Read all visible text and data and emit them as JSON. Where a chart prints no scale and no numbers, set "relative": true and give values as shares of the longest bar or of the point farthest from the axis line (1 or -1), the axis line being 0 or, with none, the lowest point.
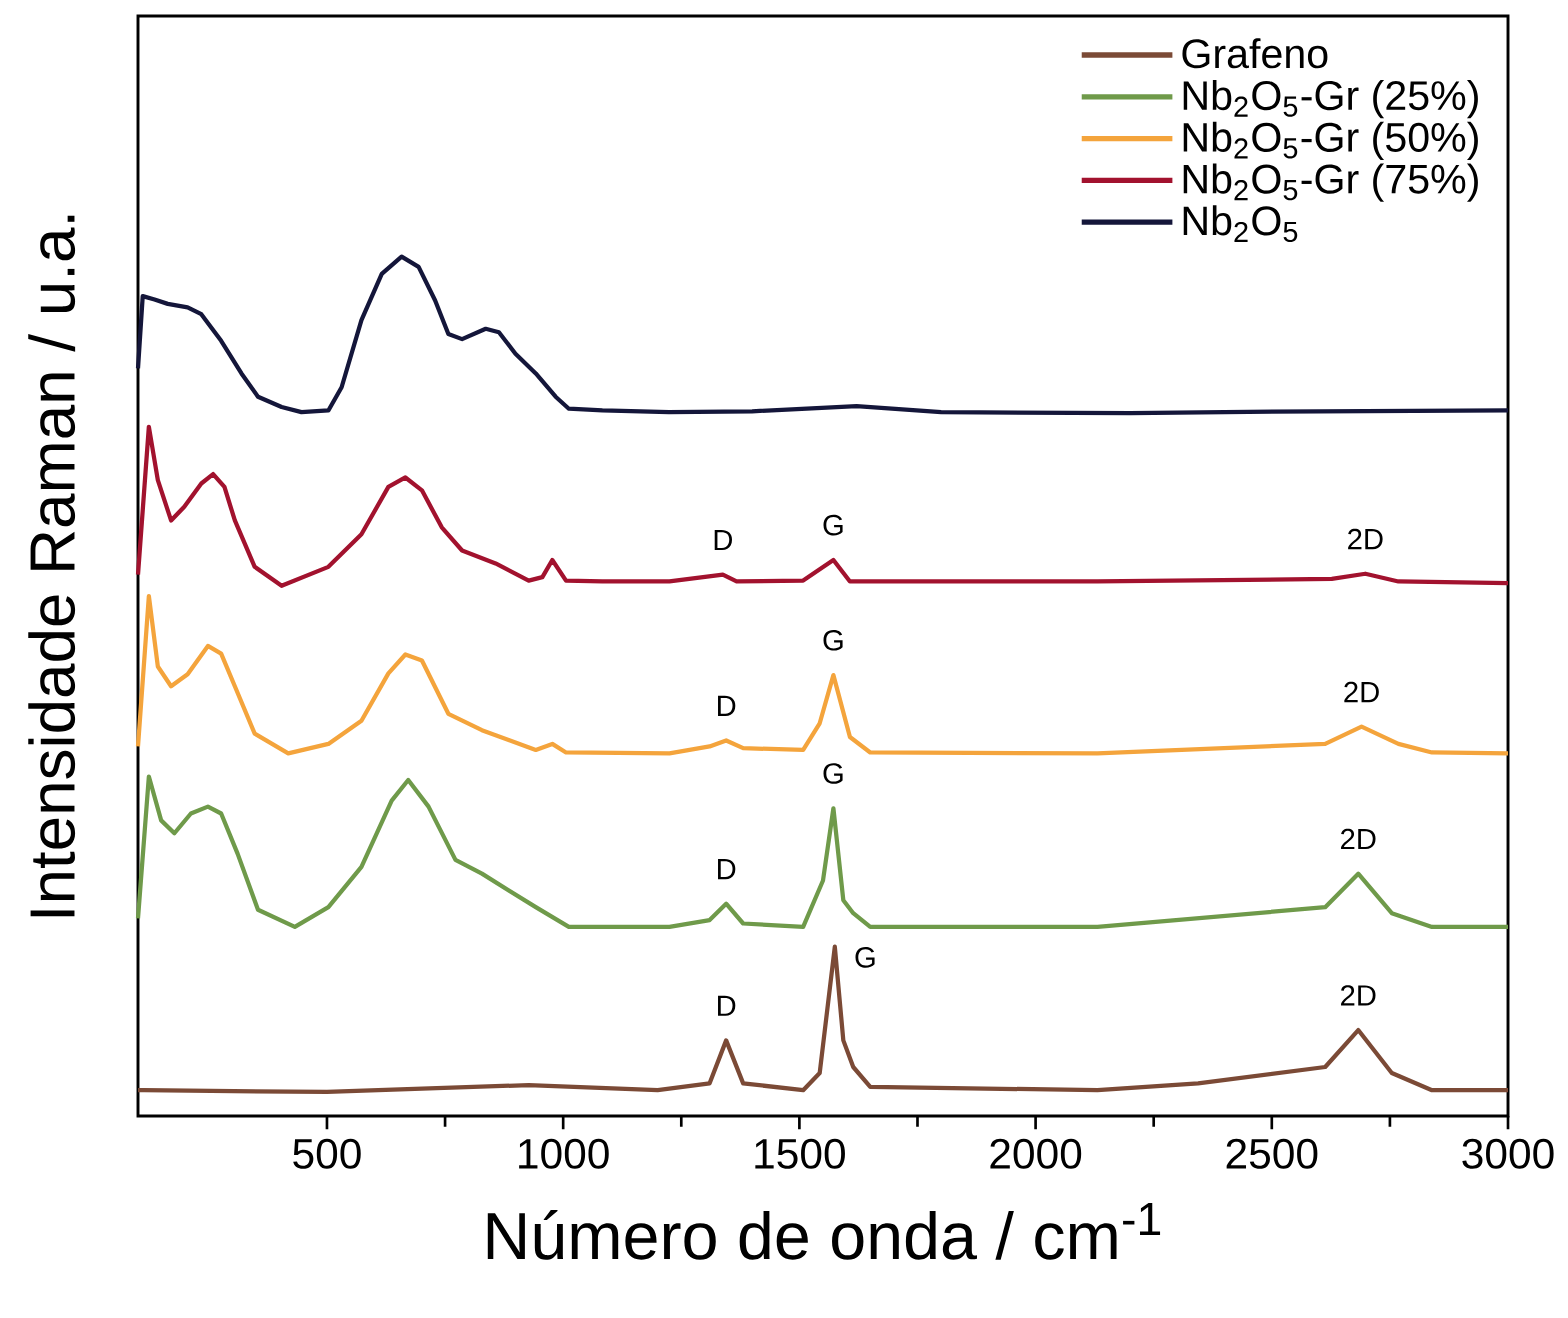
{
  "chart_data": {
    "type": "line",
    "relative": true,
    "xlabel": "Número de onda / cm$^{-1}$",
    "ylabel": "Intensidade Raman / u.a.",
    "xlim": [
      100,
      3000
    ],
    "xticks": [
      500,
      1000,
      1500,
      2000,
      2500,
      3000
    ],
    "grid": false,
    "legend": "top right",
    "marker": "none",
    "line_style": "solid",
    "series": [
      {
        "name": "Grafeno",
        "color": "#7b4a36",
        "x": [
          100,
          113,
          500,
          927,
          1200,
          1310,
          1345,
          1381,
          1508,
          1543,
          1575,
          1593,
          1614,
          1650,
          2131,
          2344,
          2613,
          2683,
          2754,
          2839,
          3000
        ],
        "values": [
          0.03,
          0.03,
          0.028,
          0.036,
          0.03,
          0.038,
          0.088,
          0.038,
          0.03,
          0.05,
          0.197,
          0.088,
          0.057,
          0.034,
          0.03,
          0.038,
          0.057,
          0.1,
          0.05,
          0.03,
          0.03
        ]
      },
      {
        "name": "Nb$_{2}$O$_{5}$-Gr (25%)",
        "color": "#6f9a4a",
        "x": [
          100,
          123,
          149,
          177,
          212,
          248,
          276,
          311,
          354,
          432,
          503,
          573,
          637,
          672,
          715,
          772,
          828,
          942,
          1012,
          1225,
          1310,
          1345,
          1381,
          1508,
          1550,
          1572,
          1593,
          1614,
          1650,
          2131,
          2613,
          2683,
          2754,
          2839,
          3000
        ],
        "values": [
          0.23,
          0.395,
          0.344,
          0.329,
          0.352,
          0.36,
          0.352,
          0.305,
          0.24,
          0.22,
          0.243,
          0.29,
          0.367,
          0.391,
          0.36,
          0.298,
          0.282,
          0.243,
          0.22,
          0.22,
          0.228,
          0.247,
          0.224,
          0.22,
          0.274,
          0.358,
          0.251,
          0.236,
          0.22,
          0.22,
          0.243,
          0.282,
          0.236,
          0.22,
          0.22
        ]
      },
      {
        "name": "Nb$_{2}$O$_{5}$-Gr (50%)",
        "color": "#f4a43c",
        "x": [
          100,
          123,
          142,
          170,
          205,
          248,
          276,
          305,
          347,
          418,
          503,
          573,
          630,
          666,
          701,
          757,
          828,
          942,
          977,
          1006,
          1225,
          1310,
          1345,
          1381,
          1508,
          1543,
          1572,
          1607,
          1650,
          2131,
          2613,
          2690,
          2768,
          2839,
          3000
        ],
        "values": [
          0.43,
          0.605,
          0.523,
          0.5,
          0.514,
          0.547,
          0.538,
          0.5,
          0.445,
          0.422,
          0.433,
          0.46,
          0.515,
          0.537,
          0.53,
          0.468,
          0.449,
          0.426,
          0.433,
          0.423,
          0.422,
          0.43,
          0.437,
          0.428,
          0.426,
          0.457,
          0.513,
          0.441,
          0.423,
          0.422,
          0.433,
          0.453,
          0.433,
          0.423,
          0.422
        ]
      },
      {
        "name": "Nb$_{2}$O$_{5}$-Gr (75%)",
        "color": "#a2122e",
        "x": [
          100,
          123,
          142,
          170,
          198,
          234,
          259,
          283,
          305,
          347,
          404,
          503,
          573,
          630,
          666,
          701,
          743,
          786,
          857,
          927,
          956,
          977,
          1006,
          1083,
          1225,
          1338,
          1367,
          1508,
          1572,
          1607,
          2131,
          2627,
          2698,
          2768,
          3000
        ],
        "values": [
          0.63,
          0.802,
          0.74,
          0.693,
          0.709,
          0.736,
          0.747,
          0.732,
          0.693,
          0.639,
          0.617,
          0.639,
          0.677,
          0.732,
          0.743,
          0.728,
          0.685,
          0.658,
          0.643,
          0.623,
          0.627,
          0.647,
          0.623,
          0.622,
          0.622,
          0.63,
          0.622,
          0.623,
          0.647,
          0.622,
          0.622,
          0.625,
          0.631,
          0.622,
          0.62
        ]
      },
      {
        "name": "Nb$_{2}$O$_{5}$",
        "color": "#14163a",
        "x": [
          100,
          110,
          135,
          163,
          205,
          234,
          276,
          319,
          354,
          404,
          446,
          503,
          531,
          573,
          616,
          658,
          694,
          729,
          757,
          786,
          836,
          864,
          899,
          942,
          984,
          1012,
          1083,
          1224,
          1400,
          1621,
          1800,
          2200,
          2600,
          3000
        ],
        "values": [
          0.87,
          0.954,
          0.95,
          0.945,
          0.941,
          0.933,
          0.902,
          0.864,
          0.837,
          0.825,
          0.819,
          0.821,
          0.848,
          0.926,
          0.98,
          1.0,
          0.988,
          0.949,
          0.91,
          0.904,
          0.916,
          0.912,
          0.887,
          0.864,
          0.837,
          0.823,
          0.821,
          0.819,
          0.82,
          0.826,
          0.819,
          0.818,
          0.82,
          0.821
        ]
      }
    ],
    "annotations": [
      {
        "text": "D",
        "x": 1338,
        "y": 0.63
      },
      {
        "text": "G",
        "x": 1572,
        "y": 0.647
      },
      {
        "text": "2D",
        "x": 2698,
        "y": 0.631
      },
      {
        "text": "D",
        "x": 1345,
        "y": 0.437
      },
      {
        "text": "G",
        "x": 1572,
        "y": 0.513
      },
      {
        "text": "2D",
        "x": 2690,
        "y": 0.453
      },
      {
        "text": "D",
        "x": 1345,
        "y": 0.247
      },
      {
        "text": "G",
        "x": 1572,
        "y": 0.358
      },
      {
        "text": "2D",
        "x": 2683,
        "y": 0.282
      },
      {
        "text": "D",
        "x": 1345,
        "y": 0.088
      },
      {
        "text": "G",
        "x": 1575,
        "y": 0.197
      },
      {
        "text": "2D",
        "x": 2683,
        "y": 0.1
      }
    ]
  }
}
